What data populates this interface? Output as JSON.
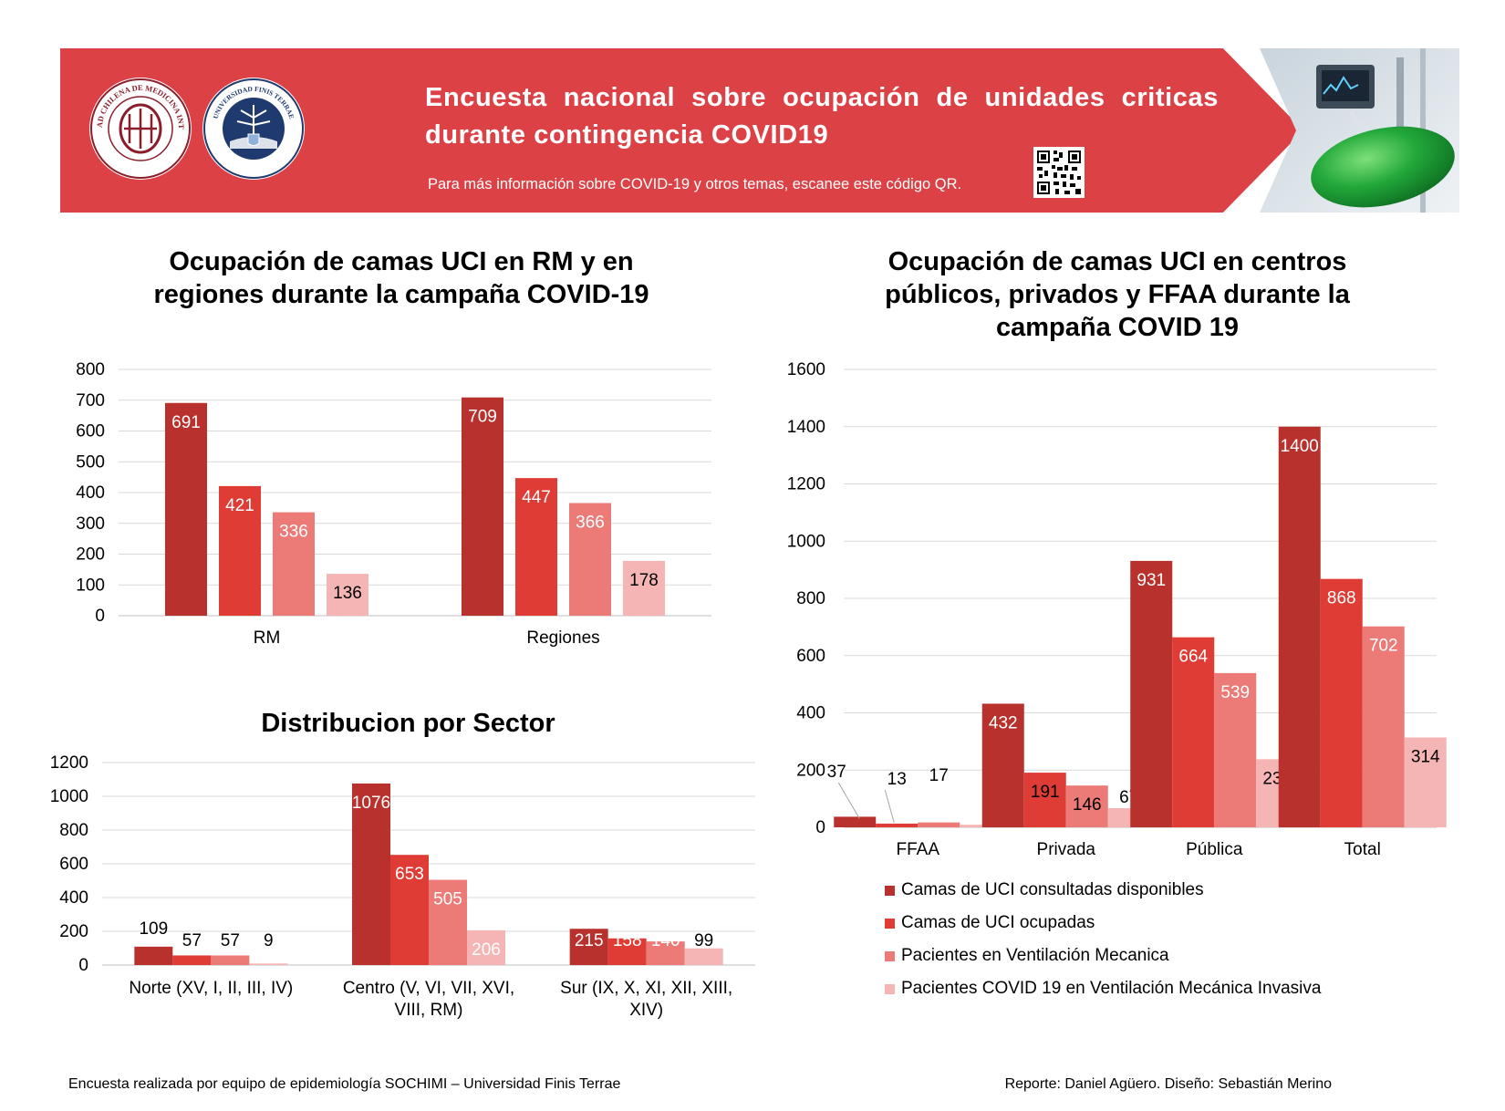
{
  "header": {
    "title": "Encuesta nacional sobre ocupación de unidades criticas durante contingencia COVID19",
    "subtitle": "Para más información sobre COVID-19 y otros temas, escanee este código QR.",
    "banner_color": "#DC4146",
    "logos": [
      {
        "name": "Sociedad Chilena de Medicina Intensiva",
        "text": "SOCIEDAD CHILENA DE MEDICINA INTENSIVA"
      },
      {
        "name": "Universidad Finis Terrae",
        "text": "UNIVERSIDAD FINIS TERRAE"
      }
    ],
    "icons": [
      "qr-code-icon",
      "ventilator-photo"
    ]
  },
  "colors": {
    "series": [
      "#B8312C",
      "#DE3C35",
      "#EC7A77",
      "#F4B5B4"
    ],
    "grid": "#D9D9D9",
    "axis": "#BFBFBF"
  },
  "chart_data": [
    {
      "id": "rm_regiones",
      "type": "bar",
      "title": "Ocupación de camas UCI en RM y en regiones durante la campaña COVID-19",
      "categories": [
        "RM",
        "Regiones"
      ],
      "series": [
        {
          "name": "Camas de UCI consultadas disponibles",
          "values": [
            691,
            709
          ]
        },
        {
          "name": "Camas de UCI ocupadas",
          "values": [
            421,
            447
          ]
        },
        {
          "name": "Pacientes en Ventilación Mecanica",
          "values": [
            336,
            366
          ]
        },
        {
          "name": "Pacientes COVID 19 en Ventilación Mecánica Invasiva",
          "values": [
            136,
            178
          ]
        }
      ],
      "ylim": [
        0,
        800
      ],
      "yticks": [
        "0",
        "100",
        "200",
        "300",
        "400",
        "500",
        "600",
        "700",
        "800"
      ],
      "grid": true,
      "legend": "none"
    },
    {
      "id": "sector",
      "type": "bar",
      "title": "Distribucion por Sector",
      "categories": [
        "Norte (XV, I, II, III, IV)",
        "Centro (V, VI, VII, XVI, VIII, RM)",
        "Sur (IX, X, XI, XII, XIII, XIV)"
      ],
      "series": [
        {
          "name": "Camas de UCI consultadas disponibles",
          "values": [
            109,
            1076,
            215
          ]
        },
        {
          "name": "Camas de UCI ocupadas",
          "values": [
            57,
            653,
            158
          ]
        },
        {
          "name": "Pacientes en Ventilación Mecanica",
          "values": [
            57,
            505,
            140
          ]
        },
        {
          "name": "Pacientes COVID 19 en Ventilación Mecánica Invasiva",
          "values": [
            9,
            206,
            99
          ]
        }
      ],
      "ylim": [
        0,
        1200
      ],
      "yticks": [
        "0",
        "200",
        "400",
        "600",
        "800",
        "1000",
        "1200"
      ],
      "grid": true,
      "legend": "none"
    },
    {
      "id": "centros",
      "type": "bar",
      "title": "Ocupación de camas UCI en centros públicos, privados y FFAA durante la campaña COVID 19",
      "categories": [
        "FFAA",
        "Privada",
        "Pública",
        "Total"
      ],
      "series": [
        {
          "name": "Camas de UCI consultadas disponibles",
          "values": [
            37,
            432,
            931,
            1400
          ]
        },
        {
          "name": "Camas de UCI ocupadas",
          "values": [
            13,
            191,
            664,
            868
          ]
        },
        {
          "name": "Pacientes en Ventilación Mecanica",
          "values": [
            17,
            146,
            539,
            702
          ]
        },
        {
          "name": "Pacientes COVID 19 en Ventilación Mecánica Invasiva",
          "values": [
            9,
            67,
            238,
            314
          ]
        }
      ],
      "ylim": [
        0,
        1600
      ],
      "yticks": [
        "0",
        "200",
        "400",
        "600",
        "800",
        "1000",
        "1200",
        "1400",
        "1600"
      ],
      "grid": true,
      "legend": "bottom"
    }
  ],
  "footer": {
    "left": "Encuesta realizada por equipo de epidemiología SOCHIMI – Universidad Finis Terrae",
    "right": "Reporte: Daniel Agüero. Diseño: Sebastián Merino"
  }
}
